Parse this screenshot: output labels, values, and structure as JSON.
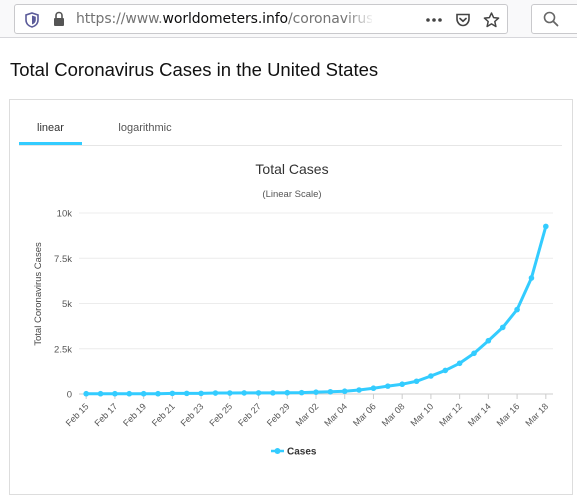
{
  "browser": {
    "url_prefix": "https://www.",
    "url_host": "worldometers.info",
    "url_path": "/coronavirus/country/us/"
  },
  "page": {
    "heading": "Total Coronavirus Cases in the United States"
  },
  "tabs": [
    {
      "label": "linear",
      "active": true
    },
    {
      "label": "logarithmic",
      "active": false
    }
  ],
  "colors": {
    "series": "#33ccff",
    "tab_underline": "#33ccff"
  },
  "chart_data": {
    "type": "line",
    "title": "Total Cases",
    "subtitle": "(Linear Scale)",
    "ylabel": "Total Coronavirus Cases",
    "xlabel": "",
    "ylim": [
      0,
      10000
    ],
    "y_ticks": [
      0,
      2500,
      5000,
      7500,
      10000
    ],
    "y_tick_labels": [
      "0",
      "2.5k",
      "5k",
      "7.5k",
      "10k"
    ],
    "x_tick_labels": [
      "Feb 15",
      "Feb 17",
      "Feb 19",
      "Feb 21",
      "Feb 23",
      "Feb 25",
      "Feb 27",
      "Feb 29",
      "Mar 02",
      "Mar 04",
      "Mar 06",
      "Mar 08",
      "Mar 10",
      "Mar 12",
      "Mar 14",
      "Mar 16",
      "Mar 18"
    ],
    "grid": true,
    "legend": "bottom-center",
    "categories": [
      "Feb 15",
      "Feb 16",
      "Feb 17",
      "Feb 18",
      "Feb 19",
      "Feb 20",
      "Feb 21",
      "Feb 22",
      "Feb 23",
      "Feb 24",
      "Feb 25",
      "Feb 26",
      "Feb 27",
      "Feb 28",
      "Feb 29",
      "Mar 01",
      "Mar 02",
      "Mar 03",
      "Mar 04",
      "Mar 05",
      "Mar 06",
      "Mar 07",
      "Mar 08",
      "Mar 09",
      "Mar 10",
      "Mar 11",
      "Mar 12",
      "Mar 13",
      "Mar 14",
      "Mar 15",
      "Mar 16",
      "Mar 17",
      "Mar 18"
    ],
    "series": [
      {
        "name": "Cases",
        "values": [
          15,
          15,
          15,
          15,
          15,
          15,
          35,
          35,
          35,
          53,
          53,
          59,
          60,
          62,
          70,
          76,
          101,
          122,
          153,
          221,
          319,
          435,
          541,
          704,
          994,
          1301,
          1697,
          2247,
          2943,
          3680,
          4663,
          6411,
          9259
        ]
      }
    ]
  }
}
